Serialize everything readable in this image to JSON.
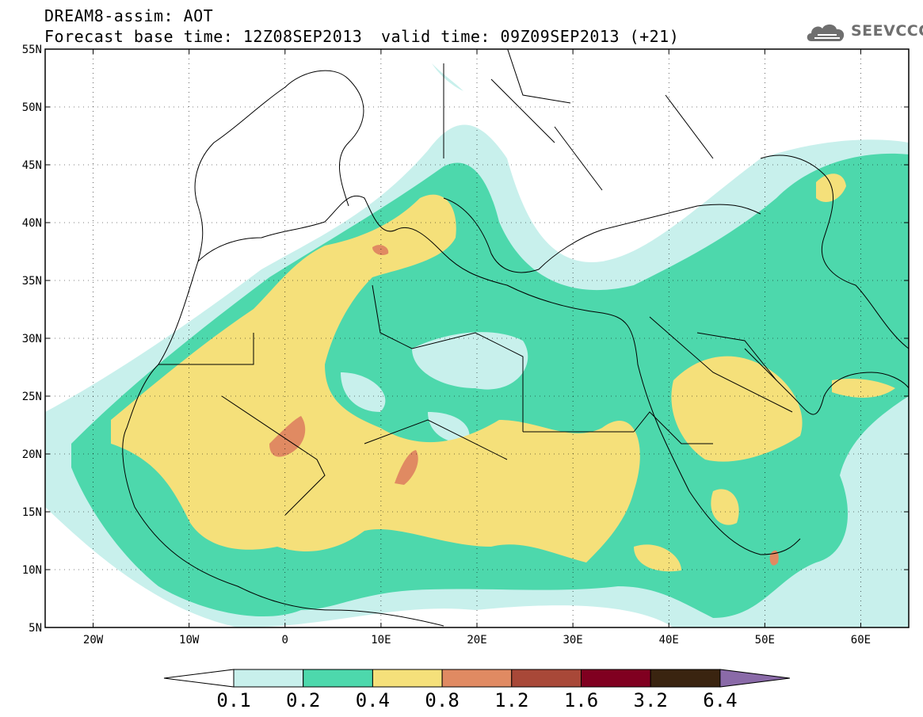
{
  "header": {
    "line1": "DREAM8-assim: AOT",
    "line2_left": "Forecast base time: 12Z08SEP2013",
    "line2_right": "valid time: 09Z09SEP2013 (+21)"
  },
  "logo": {
    "text": "SEEVCCC",
    "icon": "cloud-icon"
  },
  "map_data": {
    "type": "filled-contour",
    "variable": "AOT",
    "lon_range": [
      -25,
      65
    ],
    "lat_range": [
      5,
      55
    ],
    "grid": true,
    "x_ticks": [
      "20W",
      "10W",
      "0",
      "10E",
      "20E",
      "30E",
      "40E",
      "50E",
      "60E"
    ],
    "x_tick_values": [
      -20,
      -10,
      0,
      10,
      20,
      30,
      40,
      50,
      60
    ],
    "y_ticks": [
      "55N",
      "50N",
      "45N",
      "40N",
      "35N",
      "30N",
      "25N",
      "20N",
      "15N",
      "10N",
      "5N"
    ],
    "y_tick_values": [
      55,
      50,
      45,
      40,
      35,
      30,
      25,
      20,
      15,
      10,
      5
    ]
  },
  "colorbar": {
    "labels": [
      "0.1",
      "0.2",
      "0.4",
      "0.8",
      "1.2",
      "1.6",
      "3.2",
      "6.4"
    ],
    "colors": [
      "#ffffff",
      "#c8f0ec",
      "#4dd8ac",
      "#f5e07a",
      "#e08a62",
      "#a84838",
      "#800020",
      "#3a2410",
      "#8a6aa8"
    ]
  }
}
